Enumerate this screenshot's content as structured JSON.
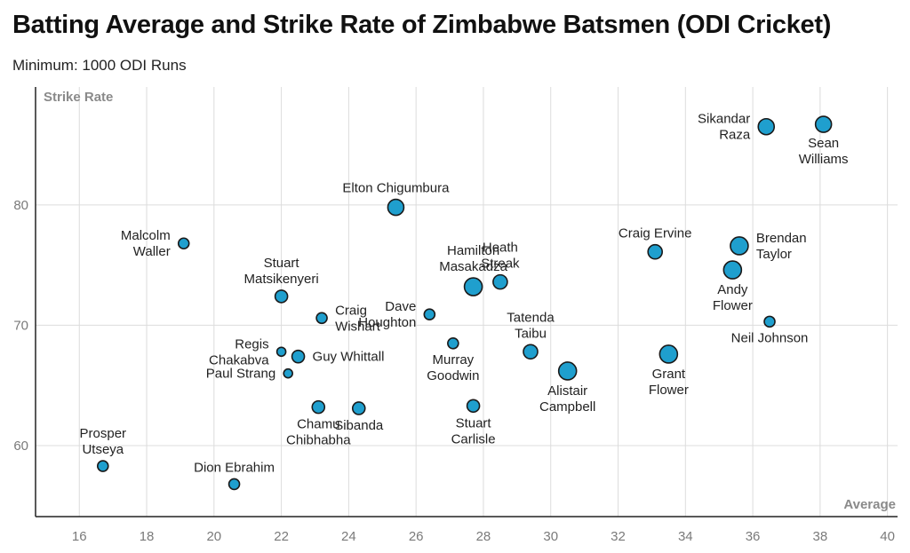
{
  "header": {
    "title": "Batting Average and Strike Rate of Zimbabwe Batsmen (ODI Cricket)",
    "subtitle": "Minimum: 1000 ODI Runs"
  },
  "colors": {
    "marker": "#1f9fce",
    "marker_stroke": "#1a1a1a",
    "grid": "#dcdcdc"
  },
  "chart_data": {
    "type": "scatter",
    "title": "Batting Average and Strike Rate of Zimbabwe Batsmen (ODI Cricket)",
    "subtitle": "Minimum: 1000 ODI Runs",
    "xlabel": "Average",
    "ylabel": "Strike Rate",
    "xlim": [
      14.7,
      40.3
    ],
    "ylim": [
      54.1,
      89.8
    ],
    "xticks": [
      16,
      18,
      20,
      22,
      24,
      26,
      28,
      30,
      32,
      34,
      36,
      38,
      40
    ],
    "yticks": [
      60,
      70,
      80
    ],
    "grid": true,
    "points": [
      {
        "name": [
          "Sikandar",
          "Raza"
        ],
        "x": 36.4,
        "y": 86.5,
        "size": 9,
        "label": "left"
      },
      {
        "name": [
          "Sean",
          "Williams"
        ],
        "x": 38.1,
        "y": 86.7,
        "size": 9,
        "label": "below"
      },
      {
        "name": [
          "Elton Chigumbura"
        ],
        "x": 25.4,
        "y": 79.8,
        "size": 9,
        "label": "above"
      },
      {
        "name": [
          "Malcolm",
          "Waller"
        ],
        "x": 19.1,
        "y": 76.8,
        "size": 6,
        "label": "left"
      },
      {
        "name": [
          "Craig Ervine"
        ],
        "x": 33.1,
        "y": 76.1,
        "size": 8,
        "label": "above"
      },
      {
        "name": [
          "Brendan",
          "Taylor"
        ],
        "x": 35.6,
        "y": 76.6,
        "size": 10,
        "label": "right"
      },
      {
        "name": [
          "Andy",
          "Flower"
        ],
        "x": 35.4,
        "y": 74.6,
        "size": 10,
        "label": "below"
      },
      {
        "name": [
          "Hamilton",
          "Masakadza"
        ],
        "x": 27.7,
        "y": 73.2,
        "size": 10,
        "label": "above"
      },
      {
        "name": [
          "Heath",
          "Streak"
        ],
        "x": 28.5,
        "y": 73.6,
        "size": 8,
        "label": "above"
      },
      {
        "name": [
          "Stuart",
          "Matsikenyeri"
        ],
        "x": 22.0,
        "y": 72.4,
        "size": 7,
        "label": "above"
      },
      {
        "name": [
          "Craig",
          "Wishart"
        ],
        "x": 23.2,
        "y": 70.6,
        "size": 6,
        "label": "right"
      },
      {
        "name": [
          "Dave",
          "Houghton"
        ],
        "x": 26.4,
        "y": 70.9,
        "size": 6,
        "label": "left"
      },
      {
        "name": [
          "Tatenda",
          "Taibu"
        ],
        "x": 29.4,
        "y": 67.8,
        "size": 8,
        "label": "above"
      },
      {
        "name": [
          "Neil Johnson"
        ],
        "x": 36.5,
        "y": 70.3,
        "size": 6,
        "label": "below"
      },
      {
        "name": [
          "Murray",
          "Goodwin"
        ],
        "x": 27.1,
        "y": 68.5,
        "size": 6,
        "label": "below"
      },
      {
        "name": [
          "Regis",
          "Chakabva"
        ],
        "x": 22.0,
        "y": 67.8,
        "size": 5,
        "label": "left"
      },
      {
        "name": [
          "Guy Whittall"
        ],
        "x": 22.5,
        "y": 67.4,
        "size": 7,
        "label": "right"
      },
      {
        "name": [
          "Paul Strang"
        ],
        "x": 22.2,
        "y": 66.0,
        "size": 5,
        "label": "left"
      },
      {
        "name": [
          "Alistair",
          "Campbell"
        ],
        "x": 30.5,
        "y": 66.2,
        "size": 10,
        "label": "below"
      },
      {
        "name": [
          "Grant",
          "Flower"
        ],
        "x": 33.5,
        "y": 67.6,
        "size": 10,
        "label": "below"
      },
      {
        "name": [
          "Chamu",
          "Chibhabha"
        ],
        "x": 23.1,
        "y": 63.2,
        "size": 7,
        "label": "below"
      },
      {
        "name": [
          "Sibanda"
        ],
        "x": 24.3,
        "y": 63.1,
        "size": 7,
        "label": "below"
      },
      {
        "name": [
          "Stuart",
          "Carlisle"
        ],
        "x": 27.7,
        "y": 63.3,
        "size": 7,
        "label": "below"
      },
      {
        "name": [
          "Prosper",
          "Utseya"
        ],
        "x": 16.7,
        "y": 58.3,
        "size": 6,
        "label": "above"
      },
      {
        "name": [
          "Dion Ebrahim"
        ],
        "x": 20.6,
        "y": 56.8,
        "size": 6,
        "label": "above"
      }
    ]
  }
}
